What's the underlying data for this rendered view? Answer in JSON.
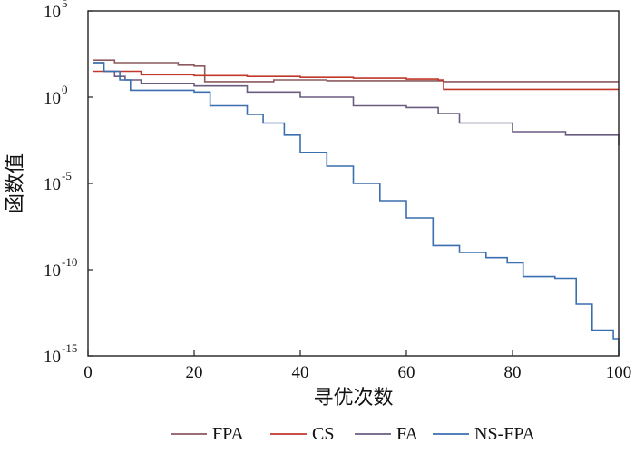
{
  "chart_data": {
    "type": "line",
    "xlabel": "寻优次数",
    "ylabel": "函数值",
    "xlim": [
      0,
      100
    ],
    "ylim_log10": [
      -15,
      5
    ],
    "y_scale": "log",
    "x_ticks": [
      "0",
      "20",
      "40",
      "60",
      "80",
      "100"
    ],
    "y_tick_exponents": [
      "5",
      "0",
      "-5",
      "-10",
      "-15"
    ],
    "y_tick_base": "10",
    "grid": false,
    "legend_position": "bottom",
    "series": [
      {
        "name": "FPA",
        "color": "#8c5a5f",
        "x": [
          1,
          4,
          5,
          12,
          17,
          20,
          22,
          35,
          45,
          60,
          67,
          80,
          100
        ],
        "log10_y": [
          2.15,
          2.15,
          2.0,
          2.0,
          1.85,
          1.8,
          0.9,
          1.0,
          0.95,
          0.95,
          0.9,
          0.9,
          0.9
        ]
      },
      {
        "name": "CS",
        "color": "#c0392b",
        "x": [
          1,
          10,
          20,
          30,
          40,
          50,
          60,
          66,
          67,
          80,
          100
        ],
        "log10_y": [
          1.5,
          1.3,
          1.25,
          1.2,
          1.15,
          1.1,
          1.05,
          1.0,
          0.45,
          0.45,
          0.45
        ]
      },
      {
        "name": "FA",
        "color": "#6a5d80",
        "x": [
          1,
          3,
          5,
          7,
          10,
          20,
          30,
          40,
          50,
          60,
          66,
          70,
          80,
          90,
          100
        ],
        "log10_y": [
          2.0,
          1.5,
          1.2,
          1.0,
          0.8,
          0.65,
          0.3,
          0.0,
          -0.5,
          -0.6,
          -0.95,
          -1.5,
          -2.0,
          -2.2,
          -2.8
        ]
      },
      {
        "name": "NS-FPA",
        "color": "#3b6fb0",
        "x": [
          1,
          3,
          6,
          8,
          15,
          20,
          23,
          30,
          33,
          37,
          40,
          45,
          50,
          55,
          60,
          65,
          70,
          75,
          79,
          82,
          88,
          92,
          95,
          99,
          100
        ],
        "log10_y": [
          2.0,
          1.5,
          1.0,
          0.4,
          0.4,
          0.3,
          -0.5,
          -1.0,
          -1.5,
          -2.2,
          -3.2,
          -4.0,
          -5.0,
          -6.0,
          -7.0,
          -8.6,
          -9.0,
          -9.3,
          -9.6,
          -10.4,
          -10.5,
          -12.0,
          -13.5,
          -14.0,
          -15.0
        ]
      }
    ]
  }
}
